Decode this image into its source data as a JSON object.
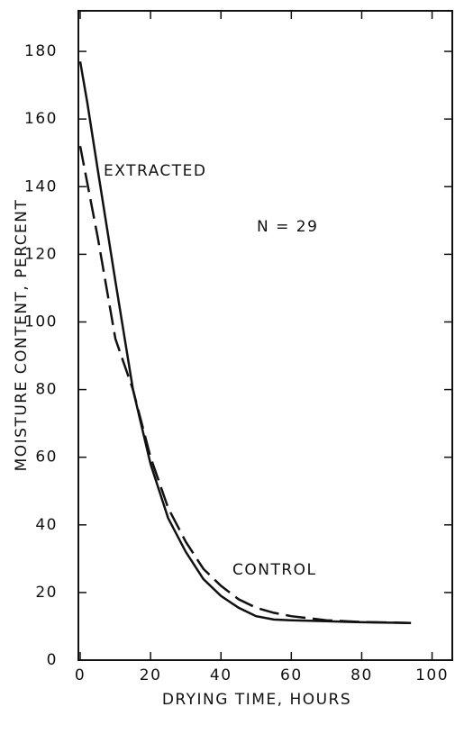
{
  "chart_data": {
    "type": "line",
    "x_label": "DRYING TIME, HOURS",
    "y_label": "MOISTURE CONTENT, PERCENT",
    "annotation": "N = 29",
    "xlim": [
      0,
      106
    ],
    "xticks": [
      0,
      20,
      40,
      60,
      80,
      100
    ],
    "ylim": [
      0,
      192
    ],
    "yticks": [
      0,
      20,
      40,
      60,
      80,
      100,
      120,
      140,
      160,
      180
    ],
    "grid": false,
    "series": [
      {
        "name": "EXTRACTED",
        "color": "#111111",
        "dash": false,
        "x": [
          0,
          2,
          5,
          10,
          15,
          20,
          25,
          30,
          35,
          40,
          45,
          50,
          55,
          60,
          70,
          80,
          94
        ],
        "values": [
          177,
          165,
          145,
          112,
          80,
          58,
          42,
          32,
          24,
          19,
          15.5,
          13,
          12,
          11.8,
          11.5,
          11.2,
          11
        ]
      },
      {
        "name": "CONTROL",
        "color": "#111111",
        "dash": true,
        "x": [
          0,
          5,
          10,
          15,
          20,
          25,
          30,
          35,
          40,
          45,
          50,
          55,
          60,
          70,
          80,
          94
        ],
        "values": [
          152,
          125,
          95,
          80,
          60,
          45,
          35,
          27,
          22,
          18,
          15.5,
          14,
          13,
          11.8,
          11.3,
          11
        ]
      }
    ]
  }
}
